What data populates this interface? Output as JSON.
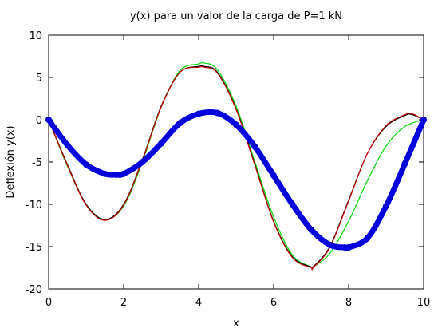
{
  "chart_data": {
    "type": "line",
    "title": "y(x) para un valor de la carga de P=1 kN",
    "xlabel": "x",
    "ylabel": "Deflexión y(x)",
    "xlim": [
      0,
      10
    ],
    "ylim": [
      -20,
      10
    ],
    "xticks": [
      0,
      2,
      4,
      6,
      8,
      10
    ],
    "yticks": [
      -20,
      -15,
      -10,
      -5,
      0,
      5,
      10
    ],
    "grid": false,
    "legend": "none",
    "series": [
      {
        "color": "#00dd00",
        "style": "line",
        "x": [
          0,
          0.5,
          1.0,
          1.5,
          2.0,
          2.5,
          3.0,
          3.5,
          4.0,
          4.15,
          4.5,
          5.0,
          5.5,
          6.0,
          6.5,
          7.0,
          7.05,
          7.5,
          8.0,
          8.5,
          9.0,
          9.5,
          10.0
        ],
        "y": [
          0,
          -5.5,
          -10.0,
          -11.8,
          -10.2,
          -5.0,
          1.5,
          5.8,
          6.6,
          6.7,
          5.9,
          1.6,
          -5.0,
          -11.5,
          -16.0,
          -17.4,
          -17.4,
          -15.8,
          -12.0,
          -7.2,
          -3.1,
          -0.8,
          0
        ]
      },
      {
        "color": "#000000",
        "style": "line",
        "x": [
          0,
          0.5,
          1.0,
          1.5,
          2.0,
          2.5,
          3.0,
          3.5,
          4.0,
          4.15,
          4.5,
          5.0,
          5.5,
          6.0,
          6.5,
          7.0,
          7.05,
          7.5,
          8.0,
          8.5,
          9.0,
          9.5,
          9.7,
          10.0
        ],
        "y": [
          0,
          -5.3,
          -10.0,
          -11.8,
          -10.0,
          -4.7,
          1.6,
          5.6,
          6.3,
          6.3,
          5.6,
          1.3,
          -5.3,
          -12.0,
          -16.2,
          -17.4,
          -17.4,
          -15.0,
          -9.5,
          -4.0,
          -0.8,
          0.5,
          0.6,
          0
        ]
      },
      {
        "color": "#cc0000",
        "style": "line",
        "x": [
          0,
          0.5,
          1.0,
          1.5,
          2.0,
          2.5,
          3.0,
          3.5,
          4.0,
          4.15,
          4.5,
          5.0,
          5.5,
          6.0,
          6.5,
          7.0,
          7.05,
          7.5,
          8.0,
          8.5,
          9.0,
          9.5,
          9.7,
          10.0
        ],
        "y": [
          0,
          -5.4,
          -10.1,
          -11.9,
          -10.1,
          -4.8,
          1.5,
          5.6,
          6.2,
          6.2,
          5.5,
          1.2,
          -5.4,
          -12.1,
          -16.3,
          -17.5,
          -17.5,
          -15.1,
          -9.6,
          -4.0,
          -0.7,
          0.6,
          0.7,
          0
        ]
      },
      {
        "color": "#0000dd",
        "style": "thick-points",
        "x": [
          0,
          0.5,
          1.0,
          1.5,
          1.8,
          2.0,
          2.5,
          3.0,
          3.5,
          4.0,
          4.5,
          5.0,
          5.5,
          6.0,
          6.5,
          7.0,
          7.5,
          7.9,
          8.0,
          8.5,
          9.0,
          9.5,
          10.0
        ],
        "y": [
          0,
          -3.0,
          -5.3,
          -6.4,
          -6.5,
          -6.4,
          -5.0,
          -2.8,
          -0.4,
          0.7,
          0.8,
          -0.6,
          -3.2,
          -6.6,
          -10.0,
          -13.0,
          -14.8,
          -15.1,
          -15.1,
          -14.0,
          -10.2,
          -5.2,
          0
        ]
      }
    ]
  }
}
